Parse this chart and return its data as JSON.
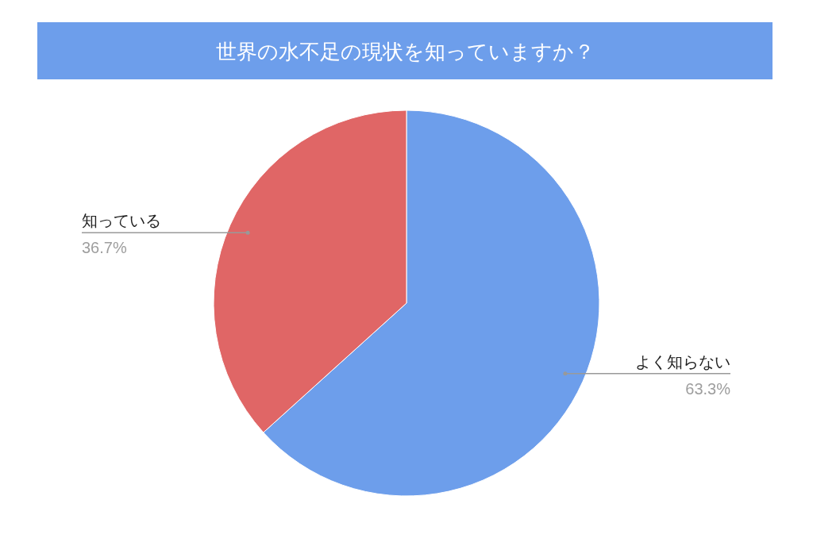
{
  "chart_data": {
    "type": "pie",
    "title": "世界の水不足の現状を知っていますか？",
    "categories": [
      "よく知らない",
      "知っている"
    ],
    "values": [
      63.3,
      36.7
    ],
    "colors": [
      "#6d9eeb",
      "#e06666"
    ],
    "value_labels": [
      "63.3%",
      "36.7%"
    ]
  }
}
